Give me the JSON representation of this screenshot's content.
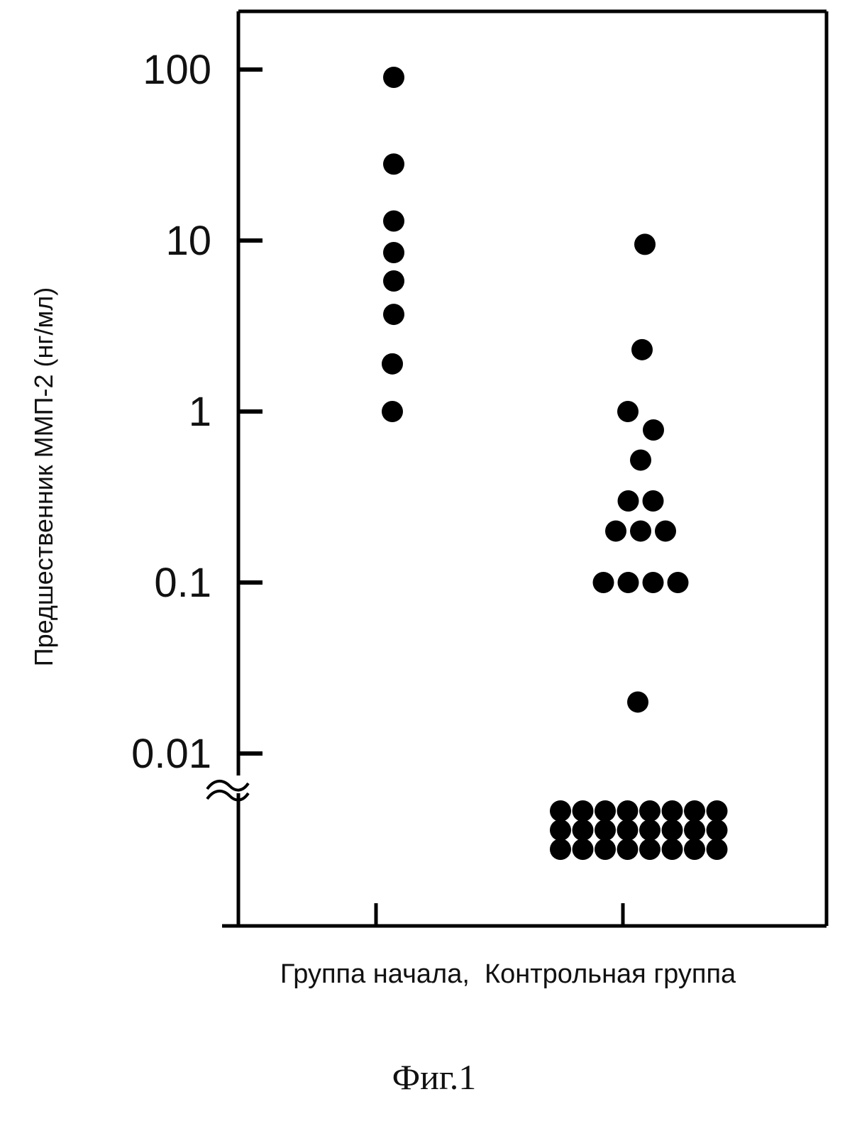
{
  "chart_data": {
    "type": "scatter",
    "title": "",
    "ylabel": "Предшественник ММП-2 (нг/мл)",
    "yscale": "log",
    "ylim": [
      0.001,
      200
    ],
    "yticks": [
      {
        "value": 100,
        "label": "100"
      },
      {
        "value": 10,
        "label": "10"
      },
      {
        "value": 1,
        "label": "1"
      },
      {
        "value": 0.1,
        "label": "0.1"
      },
      {
        "value": 0.01,
        "label": "0.01"
      }
    ],
    "axis_break": "below 0.01",
    "categories_label": "Группа начала,  Контрольная группа",
    "categories": [
      "Группа начала",
      "Контрольная группа"
    ],
    "series": [
      {
        "category": "Группа начала",
        "values": [
          90,
          28,
          13,
          8.5,
          5.8,
          3.7,
          1.9,
          1.0
        ]
      },
      {
        "category": "Контрольная группа",
        "values": [
          9.5,
          2.3,
          1.0,
          0.78,
          0.52,
          0.3,
          0.3,
          0.2,
          0.2,
          0.2,
          0.1,
          0.1,
          0.1,
          0.1,
          0.02
        ],
        "below_detection_count": 24
      }
    ],
    "grid": false,
    "legend": "none",
    "marker_color": "#000000"
  },
  "figure_label": "Фиг.1"
}
